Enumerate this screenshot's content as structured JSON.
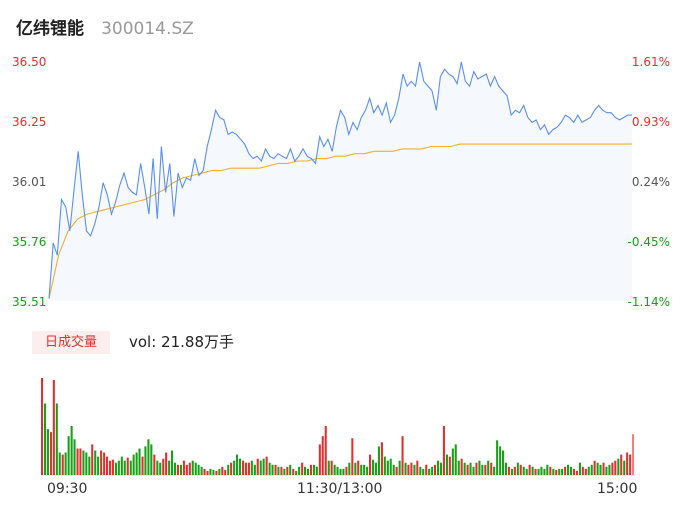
{
  "header": {
    "name": "亿纬锂能",
    "code": "300014.SZ"
  },
  "volume_panel": {
    "tag": "日成交量",
    "text": "vol: 21.88万手"
  },
  "colors": {
    "price_line": "#5b8ff0",
    "avg_line": "#f0b030",
    "up": "#e03030",
    "down": "#18a018",
    "area": "#f5f8fd"
  },
  "chart_data": [
    {
      "type": "line",
      "title": "",
      "y_left_ticks": [
        "36.50",
        "36.25",
        "36.01",
        "35.76",
        "35.51"
      ],
      "y_right_ticks": [
        "1.61%",
        "0.93%",
        "0.24%",
        "-0.45%",
        "-1.14%"
      ],
      "ylim": [
        35.51,
        36.5
      ],
      "x_ticks": [
        "09:30",
        "11:30/13:00",
        "15:00"
      ],
      "series": [
        {
          "values": [
            35.52,
            35.75,
            35.7,
            35.93,
            35.9,
            35.8,
            35.97,
            36.13,
            35.95,
            35.8,
            35.78,
            35.83,
            35.9,
            36.0,
            35.95,
            35.87,
            35.92,
            35.99,
            36.04,
            35.98,
            35.96,
            35.95,
            36.08,
            35.98,
            35.87,
            36.1,
            35.85,
            36.15,
            35.96,
            36.08,
            35.86,
            36.04,
            35.98,
            36.02,
            36.01,
            36.1,
            36.03,
            36.05,
            36.15,
            36.22,
            36.3,
            36.27,
            36.26,
            36.2,
            36.21,
            36.2,
            36.18,
            36.16,
            36.12,
            36.1,
            36.11,
            36.09,
            36.14,
            36.11,
            36.1,
            36.12,
            36.11,
            36.1,
            36.14,
            36.09,
            36.11,
            36.14,
            36.11,
            36.1,
            36.08,
            36.19,
            36.15,
            36.18,
            36.13,
            36.23,
            36.3,
            36.27,
            36.2,
            36.25,
            36.22,
            36.27,
            36.3,
            36.35,
            36.29,
            36.32,
            36.28,
            36.33,
            36.25,
            36.28,
            36.35,
            36.45,
            36.4,
            36.42,
            36.4,
            36.5,
            36.42,
            36.4,
            36.38,
            36.3,
            36.44,
            36.47,
            36.45,
            36.44,
            36.41,
            36.5,
            36.42,
            36.4,
            36.46,
            36.43,
            36.44,
            36.45,
            36.4,
            36.44,
            36.4,
            36.38,
            36.36,
            36.28,
            36.3,
            36.29,
            36.32,
            36.27,
            36.25,
            36.26,
            36.22,
            36.24,
            36.2,
            36.22,
            36.23,
            36.25,
            36.28,
            36.27,
            36.25,
            36.28,
            36.25,
            36.26,
            36.27,
            36.3,
            36.32,
            36.3,
            36.29,
            36.29,
            36.27,
            36.26,
            36.27,
            36.28,
            36.28
          ],
          "style": "price"
        },
        {
          "values": [
            35.52,
            35.7,
            35.8,
            35.85,
            35.87,
            35.88,
            35.89,
            35.9,
            35.91,
            35.92,
            35.93,
            35.95,
            35.97,
            36.0,
            36.02,
            36.03,
            36.04,
            36.05,
            36.05,
            36.06,
            36.06,
            36.06,
            36.06,
            36.07,
            36.08,
            36.08,
            36.09,
            36.09,
            36.1,
            36.1,
            36.11,
            36.11,
            36.12,
            36.12,
            36.13,
            36.13,
            36.13,
            36.14,
            36.14,
            36.14,
            36.15,
            36.15,
            36.15,
            36.16,
            36.16,
            36.16,
            36.16,
            36.16,
            36.16,
            36.16,
            36.16,
            36.16,
            36.16,
            36.16,
            36.16,
            36.16,
            36.16,
            36.16,
            36.16,
            36.16,
            36.16,
            36.16
          ],
          "style": "avg"
        }
      ]
    },
    {
      "type": "bar",
      "title": "",
      "values": [
        95,
        70,
        45,
        42,
        93,
        70,
        22,
        20,
        22,
        38,
        48,
        35,
        26,
        26,
        24,
        22,
        18,
        30,
        24,
        18,
        24,
        22,
        18,
        14,
        15,
        12,
        14,
        18,
        14,
        17,
        14,
        20,
        22,
        26,
        18,
        28,
        35,
        30,
        20,
        14,
        12,
        16,
        22,
        14,
        24,
        12,
        10,
        10,
        14,
        10,
        12,
        14,
        12,
        10,
        8,
        6,
        4,
        6,
        5,
        4,
        6,
        8,
        5,
        10,
        12,
        14,
        20,
        16,
        14,
        12,
        12,
        14,
        10,
        16,
        14,
        16,
        18,
        12,
        10,
        10,
        8,
        8,
        6,
        8,
        10,
        6,
        4,
        8,
        12,
        8,
        6,
        10,
        10,
        8,
        30,
        38,
        48,
        14,
        14,
        10,
        8,
        6,
        6,
        8,
        12,
        36,
        12,
        14,
        10,
        10,
        8,
        20,
        15,
        12,
        28,
        32,
        18,
        14,
        16,
        10,
        8,
        14,
        38,
        12,
        10,
        12,
        10,
        14,
        8,
        6,
        10,
        6,
        8,
        10,
        14,
        12,
        48,
        20,
        18,
        26,
        30,
        14,
        16,
        12,
        10,
        12,
        8,
        12,
        14,
        10,
        10,
        14,
        12,
        8,
        34,
        28,
        24,
        12,
        8,
        6,
        8,
        12,
        10,
        8,
        6,
        10,
        8,
        6,
        6,
        8,
        6,
        10,
        8,
        6,
        5,
        6,
        6,
        8,
        10,
        8,
        6,
        4,
        12,
        8,
        6,
        8,
        10,
        14,
        12,
        10,
        12,
        8,
        10,
        12,
        14,
        16,
        20,
        14,
        22,
        20,
        40
      ],
      "colors_up": [
        1,
        0,
        0,
        1,
        1,
        0,
        0,
        1,
        0,
        0,
        0,
        0,
        1,
        1,
        0,
        0,
        0,
        1,
        0,
        0,
        1,
        1,
        1,
        1,
        1,
        0,
        0,
        0,
        0,
        1,
        0,
        0,
        0,
        0,
        1,
        0,
        0,
        0,
        1,
        0,
        0,
        1,
        1,
        0,
        0,
        0,
        1,
        0,
        1,
        1,
        1,
        0,
        0,
        0,
        0,
        1,
        1,
        0,
        0,
        1,
        0,
        1,
        1,
        0,
        1,
        0,
        0,
        0,
        1,
        1,
        1,
        0,
        0,
        1,
        0,
        0,
        1,
        0,
        0,
        1,
        0,
        1,
        0,
        1,
        0,
        1,
        0,
        0,
        1,
        0,
        0,
        1,
        0,
        0,
        1,
        1,
        1,
        0,
        1,
        0,
        0,
        0,
        0,
        1,
        0,
        1,
        0,
        1,
        0,
        0,
        0,
        1,
        0,
        0,
        0,
        1,
        0,
        0,
        0,
        0,
        1,
        0,
        1,
        0,
        1,
        1,
        0,
        1,
        0,
        0,
        1,
        0,
        0,
        1,
        0,
        0,
        1,
        0,
        1,
        0,
        0,
        0,
        1,
        0,
        1,
        0,
        0,
        1,
        0,
        0,
        1,
        0,
        1,
        0,
        0,
        0,
        0,
        0,
        1,
        0,
        1,
        0,
        1,
        0,
        0,
        1,
        0,
        1,
        0,
        0,
        0,
        0,
        1,
        0,
        1,
        0,
        0,
        1,
        0,
        0,
        1,
        1,
        0,
        1,
        1,
        0,
        0,
        1,
        0,
        0,
        1,
        0,
        0,
        1,
        1,
        0,
        1,
        0,
        1,
        1,
        1
      ]
    }
  ]
}
